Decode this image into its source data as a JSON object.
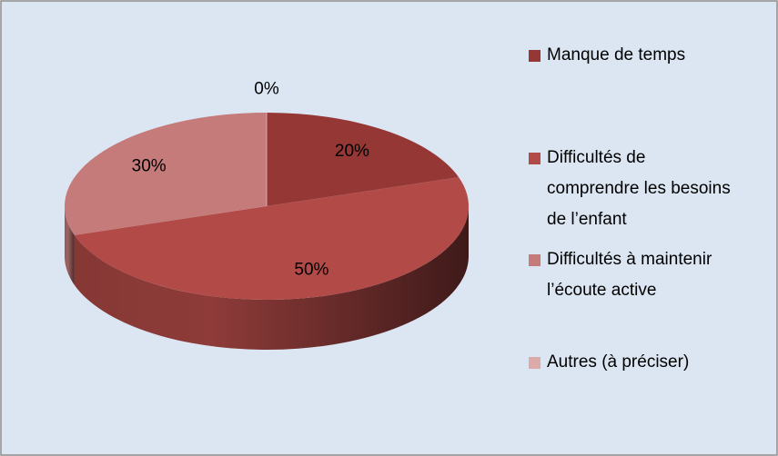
{
  "chart_data": {
    "type": "pie",
    "categories": [
      "Manque de temps",
      "Difficultés de comprendre les besoins de l’enfant",
      "Difficultés à maintenir l’écoute active",
      "Autres (à préciser)"
    ],
    "values": [
      20,
      50,
      30,
      0
    ],
    "value_labels": [
      "20%",
      "50%",
      "30%",
      "0%"
    ],
    "colors": [
      "#953735",
      "#b24a47",
      "#c47b7a",
      "#dcaaa9"
    ],
    "legend": "right"
  }
}
